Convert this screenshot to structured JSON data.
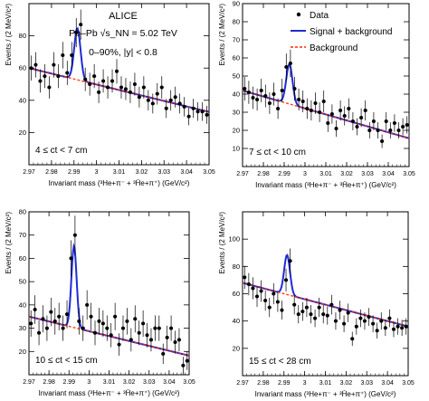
{
  "header": {
    "experiment": "ALICE",
    "system": "Pb–Pb √s_NN = 5.02 TeV",
    "selection": "0–90%, |y| < 0.8"
  },
  "legend": {
    "placement": "top-right",
    "items": [
      {
        "label": "Data",
        "style": "marker",
        "color": "#000000"
      },
      {
        "label": "Signal + background",
        "style": "line",
        "color": "#1f2bd6"
      },
      {
        "label": "Background",
        "style": "dashed",
        "color": "#ff2a00"
      }
    ]
  },
  "colors": {
    "data": "#000000",
    "fit": "#1f2bd6",
    "background": "#ff2a00",
    "overlap": "#8b1aa0"
  },
  "chart_data": [
    {
      "type": "scatter",
      "panel_label": "4 ≤ ct < 7 cm",
      "xlabel": "Invariant mass (³He+π⁻ + ³H̄e+π⁺) (GeV/c²)",
      "ylabel": "Events / (2 MeV/c²)",
      "xlim": [
        2.97,
        3.05
      ],
      "ylim": [
        0,
        100
      ],
      "xticks": [
        2.97,
        2.98,
        2.99,
        3,
        3.01,
        3.02,
        3.03,
        3.04,
        3.05
      ],
      "xtick_labels": [
        "2.97",
        "2.98",
        "2.99",
        "3",
        "3.01",
        "3.02",
        "3.03",
        "3.04",
        "3.05"
      ],
      "yticks": [
        20,
        40,
        60,
        80
      ],
      "points": [
        [
          2.971,
          60
        ],
        [
          2.973,
          62
        ],
        [
          2.975,
          52
        ],
        [
          2.977,
          55
        ],
        [
          2.979,
          48
        ],
        [
          2.981,
          62
        ],
        [
          2.983,
          55
        ],
        [
          2.985,
          68
        ],
        [
          2.987,
          57
        ],
        [
          2.989,
          68
        ],
        [
          2.991,
          82
        ],
        [
          2.993,
          87
        ],
        [
          2.995,
          53
        ],
        [
          2.997,
          50
        ],
        [
          2.999,
          55
        ],
        [
          3.001,
          45
        ],
        [
          3.003,
          52
        ],
        [
          3.005,
          48
        ],
        [
          3.007,
          52
        ],
        [
          3.009,
          58
        ],
        [
          3.011,
          48
        ],
        [
          3.013,
          47
        ],
        [
          3.015,
          45
        ],
        [
          3.017,
          50
        ],
        [
          3.019,
          42
        ],
        [
          3.021,
          48
        ],
        [
          3.023,
          40
        ],
        [
          3.025,
          38
        ],
        [
          3.027,
          44
        ],
        [
          3.029,
          48
        ],
        [
          3.031,
          35
        ],
        [
          3.033,
          40
        ],
        [
          3.035,
          42
        ],
        [
          3.037,
          38
        ],
        [
          3.039,
          36
        ],
        [
          3.041,
          30
        ],
        [
          3.043,
          35
        ],
        [
          3.045,
          33
        ],
        [
          3.047,
          33
        ],
        [
          3.049,
          31
        ]
      ],
      "background": {
        "a": 60,
        "b": -340
      },
      "signal": {
        "mean": 2.9915,
        "sigma": 0.0014,
        "amplitude": 32
      }
    },
    {
      "type": "scatter",
      "panel_label": "7 ≤ ct < 10 cm",
      "xlabel": "Invariant mass (³He+π⁻ + ³H̄e+π⁺) (GeV/c²)",
      "ylabel": "Events / (2 MeV/c²)",
      "xlim": [
        2.97,
        3.05
      ],
      "ylim": [
        0,
        90
      ],
      "xticks": [
        2.97,
        2.98,
        2.99,
        3,
        3.01,
        3.02,
        3.03,
        3.04,
        3.05
      ],
      "xtick_labels": [
        "2.97",
        "2.98",
        "2.99",
        "3",
        "3.01",
        "3.02",
        "3.03",
        "3.04",
        "3.05"
      ],
      "yticks": [
        10,
        20,
        30,
        40,
        50,
        60,
        70,
        80,
        90
      ],
      "points": [
        [
          2.971,
          43
        ],
        [
          2.973,
          41
        ],
        [
          2.975,
          38
        ],
        [
          2.977,
          37
        ],
        [
          2.979,
          42
        ],
        [
          2.981,
          39
        ],
        [
          2.983,
          35
        ],
        [
          2.985,
          40
        ],
        [
          2.987,
          32
        ],
        [
          2.989,
          42
        ],
        [
          2.991,
          55
        ],
        [
          2.993,
          57
        ],
        [
          2.995,
          43
        ],
        [
          2.997,
          37
        ],
        [
          2.999,
          36
        ],
        [
          3.001,
          32
        ],
        [
          3.003,
          31
        ],
        [
          3.005,
          35
        ],
        [
          3.007,
          30
        ],
        [
          3.009,
          36
        ],
        [
          3.011,
          24
        ],
        [
          3.013,
          29
        ],
        [
          3.015,
          21
        ],
        [
          3.017,
          31
        ],
        [
          3.019,
          28
        ],
        [
          3.021,
          32
        ],
        [
          3.023,
          25
        ],
        [
          3.025,
          22
        ],
        [
          3.027,
          27
        ],
        [
          3.029,
          31
        ],
        [
          3.031,
          20
        ],
        [
          3.033,
          25
        ],
        [
          3.035,
          20
        ],
        [
          3.037,
          14
        ],
        [
          3.039,
          25
        ],
        [
          3.041,
          20
        ],
        [
          3.043,
          24
        ],
        [
          3.045,
          20
        ],
        [
          3.047,
          22
        ],
        [
          3.049,
          23
        ]
      ],
      "background": {
        "a": 42,
        "b": -330
      },
      "signal": {
        "mean": 2.9925,
        "sigma": 0.0015,
        "amplitude": 22
      }
    },
    {
      "type": "scatter",
      "panel_label": "10 ≤ ct < 15 cm",
      "xlabel": "Invariant mass (³He+π⁻ + ³H̄e+π⁺) (GeV/c²)",
      "ylabel": "Events / (2 MeV/c²)",
      "xlim": [
        2.97,
        3.05
      ],
      "ylim": [
        10,
        80
      ],
      "xticks": [
        2.97,
        2.98,
        2.99,
        3,
        3.01,
        3.02,
        3.03,
        3.04,
        3.05
      ],
      "xtick_labels": [
        "2.97",
        "2.98",
        "2.99",
        "3",
        "3.01",
        "3.02",
        "3.03",
        "3.04",
        "3.05"
      ],
      "yticks": [
        20,
        30,
        40,
        50,
        60,
        70,
        80
      ],
      "points": [
        [
          2.971,
          32
        ],
        [
          2.973,
          38
        ],
        [
          2.975,
          28
        ],
        [
          2.977,
          34
        ],
        [
          2.979,
          30
        ],
        [
          2.981,
          37
        ],
        [
          2.983,
          33
        ],
        [
          2.985,
          35
        ],
        [
          2.987,
          30
        ],
        [
          2.989,
          36
        ],
        [
          2.991,
          60
        ],
        [
          2.993,
          70
        ],
        [
          2.995,
          33
        ],
        [
          2.997,
          30
        ],
        [
          2.999,
          40
        ],
        [
          3.001,
          35
        ],
        [
          3.003,
          28
        ],
        [
          3.005,
          33
        ],
        [
          3.007,
          32
        ],
        [
          3.009,
          30
        ],
        [
          3.011,
          27
        ],
        [
          3.013,
          35
        ],
        [
          3.015,
          23
        ],
        [
          3.017,
          30
        ],
        [
          3.019,
          33
        ],
        [
          3.021,
          25
        ],
        [
          3.023,
          34
        ],
        [
          3.025,
          28
        ],
        [
          3.027,
          32
        ],
        [
          3.029,
          27
        ],
        [
          3.031,
          25
        ],
        [
          3.033,
          30
        ],
        [
          3.035,
          30
        ],
        [
          3.037,
          19
        ],
        [
          3.039,
          26
        ],
        [
          3.041,
          30
        ],
        [
          3.043,
          24
        ],
        [
          3.045,
          25
        ],
        [
          3.047,
          14
        ],
        [
          3.049,
          16
        ]
      ],
      "background": {
        "a": 35,
        "b": -210
      },
      "signal": {
        "mean": 2.9925,
        "sigma": 0.0013,
        "amplitude": 35
      }
    },
    {
      "type": "scatter",
      "panel_label": "15 ≤ ct < 28 cm",
      "xlabel": "Invariant mass (³He+π⁻ + ³H̄e+π⁺) (GeV/c²)",
      "ylabel": "Events / (2 MeV/c²)",
      "xlim": [
        2.97,
        3.05
      ],
      "ylim": [
        0,
        120
      ],
      "xticks": [
        2.97,
        2.98,
        2.99,
        3,
        3.01,
        3.02,
        3.03,
        3.04,
        3.05
      ],
      "xtick_labels": [
        "2.97",
        "2.98",
        "2.99",
        "3",
        "3.01",
        "3.02",
        "3.03",
        "3.04",
        "3.05"
      ],
      "yticks": [
        20,
        40,
        60,
        80,
        100
      ],
      "points": [
        [
          2.971,
          72
        ],
        [
          2.973,
          67
        ],
        [
          2.975,
          64
        ],
        [
          2.977,
          58
        ],
        [
          2.979,
          62
        ],
        [
          2.981,
          55
        ],
        [
          2.983,
          50
        ],
        [
          2.985,
          60
        ],
        [
          2.987,
          54
        ],
        [
          2.989,
          48
        ],
        [
          2.991,
          70
        ],
        [
          2.993,
          84
        ],
        [
          2.995,
          52
        ],
        [
          2.997,
          45
        ],
        [
          2.999,
          47
        ],
        [
          3.001,
          50
        ],
        [
          3.003,
          45
        ],
        [
          3.005,
          42
        ],
        [
          3.007,
          50
        ],
        [
          3.009,
          45
        ],
        [
          3.011,
          44
        ],
        [
          3.013,
          52
        ],
        [
          3.015,
          40
        ],
        [
          3.017,
          48
        ],
        [
          3.019,
          38
        ],
        [
          3.021,
          46
        ],
        [
          3.023,
          27
        ],
        [
          3.025,
          36
        ],
        [
          3.027,
          42
        ],
        [
          3.029,
          40
        ],
        [
          3.031,
          43
        ],
        [
          3.033,
          38
        ],
        [
          3.035,
          33
        ],
        [
          3.037,
          40
        ],
        [
          3.039,
          35
        ],
        [
          3.041,
          42
        ],
        [
          3.043,
          34
        ],
        [
          3.045,
          36
        ],
        [
          3.047,
          35
        ],
        [
          3.049,
          36
        ]
      ],
      "background": {
        "a": 68,
        "b": -400
      },
      "signal": {
        "mean": 2.9915,
        "sigma": 0.0014,
        "amplitude": 29
      }
    }
  ]
}
